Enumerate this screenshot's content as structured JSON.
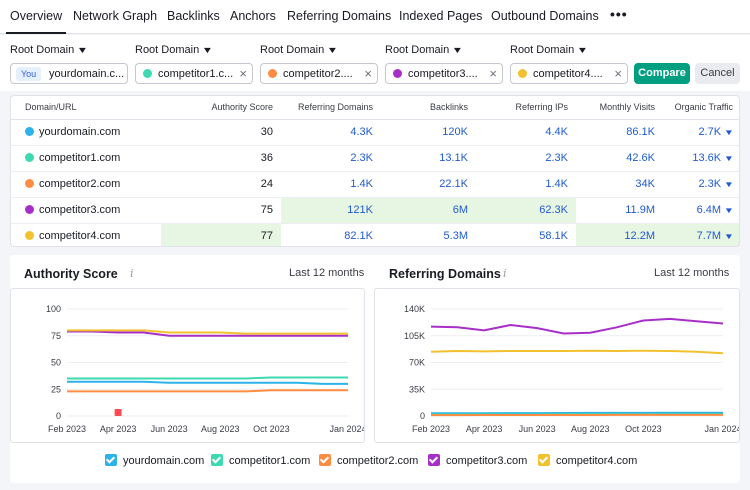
{
  "nav": {
    "tabs": [
      "Overview",
      "Network Graph",
      "Backlinks",
      "Anchors",
      "Referring Domains",
      "Indexed Pages",
      "Outbound Domains"
    ],
    "active": 0,
    "more": "•••"
  },
  "compare": {
    "selector_label": "Root Domain",
    "you_badge": "You",
    "domains": [
      {
        "label": "yourdomain.c...",
        "color": "#2db2ea"
      },
      {
        "label": "competitor1.c...",
        "color": "#3ddab1"
      },
      {
        "label": "competitor2....",
        "color": "#ff8c42"
      },
      {
        "label": "competitor3....",
        "color": "#a72fc8"
      },
      {
        "label": "competitor4....",
        "color": "#f2c12e"
      }
    ],
    "remove": "×",
    "compare_button": "Compare",
    "cancel_button": "Cancel"
  },
  "table": {
    "headers": [
      "Domain/URL",
      "Authority Score",
      "Referring Domains",
      "Backlinks",
      "Referring IPs",
      "Monthly Visits",
      "Organic Traffic"
    ],
    "rows": [
      {
        "domain": "yourdomain.com",
        "color": "#2db2ea",
        "authority": "30",
        "ref_domains": "4.3K",
        "backlinks": "120K",
        "ref_ips": "4.4K",
        "visits": "86.1K",
        "organic": "2.7K",
        "highlight": []
      },
      {
        "domain": "competitor1.com",
        "color": "#3ddab1",
        "authority": "36",
        "ref_domains": "2.3K",
        "backlinks": "13.1K",
        "ref_ips": "2.3K",
        "visits": "42.6K",
        "organic": "13.6K",
        "highlight": []
      },
      {
        "domain": "competitor2.com",
        "color": "#ff8c42",
        "authority": "24",
        "ref_domains": "1.4K",
        "backlinks": "22.1K",
        "ref_ips": "1.4K",
        "visits": "34K",
        "organic": "2.3K",
        "highlight": []
      },
      {
        "domain": "competitor3.com",
        "color": "#a72fc8",
        "authority": "75",
        "ref_domains": "121K",
        "backlinks": "6M",
        "ref_ips": "62.3K",
        "visits": "11.9M",
        "organic": "6.4M",
        "highlight": [
          "ref_domains",
          "backlinks",
          "ref_ips"
        ]
      },
      {
        "domain": "competitor4.com",
        "color": "#f2c12e",
        "authority": "77",
        "ref_domains": "82.1K",
        "backlinks": "5.3M",
        "ref_ips": "58.1K",
        "visits": "12.2M",
        "organic": "7.7M",
        "highlight": [
          "authority",
          "visits",
          "organic"
        ]
      }
    ]
  },
  "charts": {
    "period_label": "Last 12 months",
    "info": "i",
    "legend": [
      {
        "name": "yourdomain.com",
        "color": "#2db2ea"
      },
      {
        "name": "competitor1.com",
        "color": "#3ddab1"
      },
      {
        "name": "competitor2.com",
        "color": "#ff8c42"
      },
      {
        "name": "competitor3.com",
        "color": "#a72fc8"
      },
      {
        "name": "competitor4.com",
        "color": "#f2c12e"
      }
    ]
  },
  "chart_data": [
    {
      "type": "line",
      "title": "Authority Score",
      "x": [
        "Feb 2023",
        "Mar 2023",
        "Apr 2023",
        "May 2023",
        "Jun 2023",
        "Jul 2023",
        "Aug 2023",
        "Sep 2023",
        "Oct 2023",
        "Nov 2023",
        "Dec 2023",
        "Jan 2024"
      ],
      "xticks": [
        "Feb 2023",
        "Apr 2023",
        "Jun 2023",
        "Aug 2023",
        "Oct 2023",
        "Jan 2024"
      ],
      "ylim": [
        0,
        100
      ],
      "yticks": [
        0,
        25,
        50,
        75,
        100
      ],
      "marker": {
        "x": "Apr 2023",
        "color": "#ff4953"
      },
      "series": [
        {
          "name": "yourdomain.com",
          "color": "#2db2ea",
          "values": [
            32,
            32,
            32,
            32,
            31,
            31,
            31,
            31,
            31,
            31,
            30,
            30
          ]
        },
        {
          "name": "competitor1.com",
          "color": "#3ddab1",
          "values": [
            35,
            35,
            35,
            35,
            35,
            35,
            35,
            35,
            36,
            36,
            36,
            36
          ]
        },
        {
          "name": "competitor2.com",
          "color": "#ff8c42",
          "values": [
            23,
            23,
            23,
            23,
            23,
            23,
            23,
            23,
            24,
            24,
            24,
            24
          ]
        },
        {
          "name": "competitor3.com",
          "color": "#a72fc8",
          "values": [
            79,
            79,
            78,
            78,
            75,
            75,
            75,
            75,
            75,
            75,
            75,
            75
          ]
        },
        {
          "name": "competitor4.com",
          "color": "#f2c12e",
          "values": [
            80,
            80,
            80,
            80,
            78,
            78,
            78,
            77,
            77,
            77,
            77,
            77
          ]
        }
      ]
    },
    {
      "type": "line",
      "title": "Referring Domains",
      "x": [
        "Feb 2023",
        "Mar 2023",
        "Apr 2023",
        "May 2023",
        "Jun 2023",
        "Jul 2023",
        "Aug 2023",
        "Sep 2023",
        "Oct 2023",
        "Nov 2023",
        "Dec 2023",
        "Jan 2024"
      ],
      "xticks": [
        "Feb 2023",
        "Apr 2023",
        "Jun 2023",
        "Aug 2023",
        "Oct 2023",
        "Jan 2024"
      ],
      "ylim": [
        0,
        140000
      ],
      "yticks": [
        0,
        35000,
        70000,
        105000,
        140000
      ],
      "ytick_labels": [
        "0",
        "35K",
        "70K",
        "105K",
        "140K"
      ],
      "series": [
        {
          "name": "yourdomain.com",
          "color": "#2db2ea",
          "values": [
            3500,
            3600,
            3700,
            3800,
            3800,
            3900,
            4000,
            4000,
            4100,
            4200,
            4300,
            4300
          ]
        },
        {
          "name": "competitor1.com",
          "color": "#3ddab1",
          "values": [
            2000,
            2000,
            2100,
            2100,
            2100,
            2200,
            2200,
            2200,
            2300,
            2300,
            2300,
            2300
          ]
        },
        {
          "name": "competitor2.com",
          "color": "#ff8c42",
          "values": [
            1200,
            1200,
            1300,
            1300,
            1300,
            1300,
            1300,
            1400,
            1400,
            1400,
            1400,
            1400
          ]
        },
        {
          "name": "competitor3.com",
          "color": "#a72fc8",
          "values": [
            117000,
            116000,
            112000,
            119000,
            115000,
            108000,
            109000,
            116000,
            125000,
            127000,
            124000,
            121000
          ]
        },
        {
          "name": "competitor4.com",
          "color": "#f2c12e",
          "values": [
            84000,
            85000,
            84500,
            85000,
            85000,
            85000,
            85500,
            85000,
            85500,
            85000,
            84000,
            82100
          ]
        }
      ]
    }
  ]
}
